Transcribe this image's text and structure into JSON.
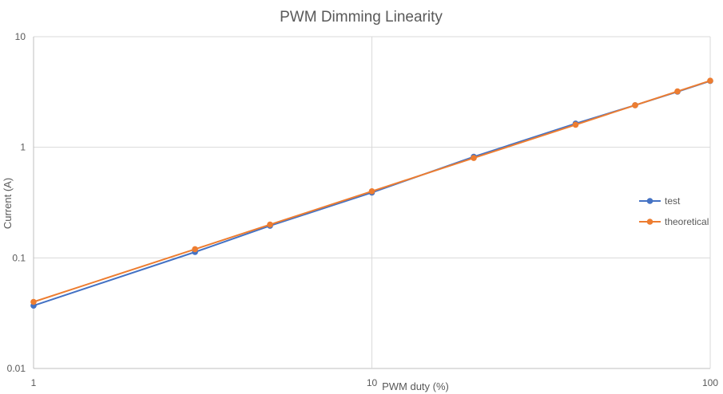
{
  "chart_data": {
    "type": "line",
    "title": "PWM Dimming Linearity",
    "xlabel": "PWM duty (%)",
    "ylabel": "Current (A)",
    "x_scale": "log",
    "y_scale": "log",
    "xlim": [
      1,
      100
    ],
    "ylim": [
      0.01,
      10
    ],
    "x_ticks": [
      "1",
      "10",
      "100"
    ],
    "y_ticks": [
      "0.01",
      "0.1",
      "1",
      "10"
    ],
    "grid": true,
    "legend_position": "right",
    "series": [
      {
        "name": "test",
        "color": "#4472c4",
        "x": [
          1,
          3,
          5,
          10,
          20,
          40,
          60,
          80,
          100
        ],
        "y": [
          0.037,
          0.113,
          0.195,
          0.39,
          0.82,
          1.64,
          2.4,
          3.18,
          3.98
        ]
      },
      {
        "name": "theoretical",
        "color": "#ed7d31",
        "x": [
          1,
          3,
          5,
          10,
          20,
          40,
          60,
          80,
          100
        ],
        "y": [
          0.04,
          0.12,
          0.2,
          0.4,
          0.8,
          1.6,
          2.4,
          3.2,
          4.0
        ]
      }
    ]
  }
}
